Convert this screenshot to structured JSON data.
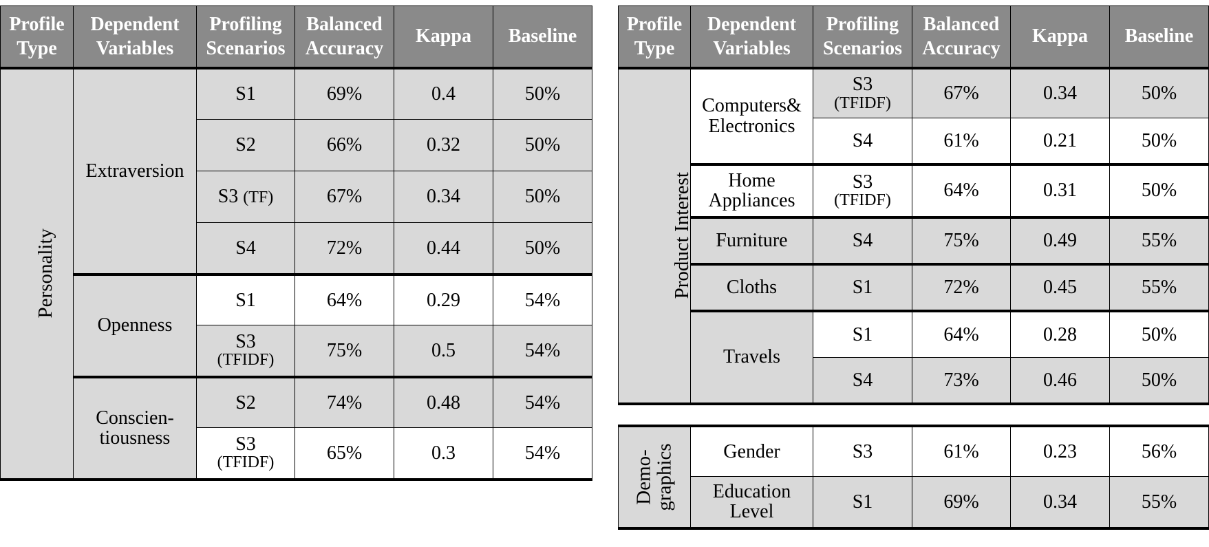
{
  "headers": {
    "profile_type": [
      "Profile",
      "Type"
    ],
    "dependent_variables": [
      "Dependent",
      "Variables"
    ],
    "profiling_scenarios": [
      "Profiling",
      "Scenarios"
    ],
    "balanced_accuracy": [
      "Balanced",
      "Accuracy"
    ],
    "kappa": "Kappa",
    "baseline": "Baseline"
  },
  "left": {
    "profile_type": "Personality",
    "groups": [
      {
        "variable": "Extraversion",
        "rows": [
          {
            "scenario": "S1",
            "acc": "69%",
            "kappa": "0.4",
            "baseline": "50%"
          },
          {
            "scenario": "S2",
            "acc": "66%",
            "kappa": "0.32",
            "baseline": "50%"
          },
          {
            "scenario": "S3",
            "scenario_sub": "(TF)",
            "acc": "67%",
            "kappa": "0.34",
            "baseline": "50%"
          },
          {
            "scenario": "S4",
            "acc": "72%",
            "kappa": "0.44",
            "baseline": "50%"
          }
        ]
      },
      {
        "variable": "Openness",
        "rows": [
          {
            "scenario": "S1",
            "acc": "64%",
            "kappa": "0.29",
            "baseline": "54%"
          },
          {
            "scenario": "S3",
            "scenario_sub": "(TFIDF)",
            "acc": "75%",
            "kappa": "0.5",
            "baseline": "54%"
          }
        ]
      },
      {
        "variable": [
          "Conscien-",
          "tiousness"
        ],
        "rows": [
          {
            "scenario": "S2",
            "acc": "74%",
            "kappa": "0.48",
            "baseline": "54%"
          },
          {
            "scenario": "S3",
            "scenario_sub": "(TFIDF)",
            "acc": "65%",
            "kappa": "0.3",
            "baseline": "54%"
          }
        ]
      }
    ]
  },
  "right": {
    "profile_type": "Product Interest",
    "groups": [
      {
        "variable": [
          "Computers&",
          "Electronics"
        ],
        "rows": [
          {
            "scenario": "S3",
            "scenario_sub": "(TFIDF)",
            "acc": "67%",
            "kappa": "0.34",
            "baseline": "50%"
          },
          {
            "scenario": "S4",
            "acc": "61%",
            "kappa": "0.21",
            "baseline": "50%"
          }
        ]
      },
      {
        "variable": [
          "Home",
          "Appliances"
        ],
        "rows": [
          {
            "scenario": "S3",
            "scenario_sub": "(TFIDF)",
            "acc": "64%",
            "kappa": "0.31",
            "baseline": "50%"
          }
        ]
      },
      {
        "variable": "Furniture",
        "rows": [
          {
            "scenario": "S4",
            "acc": "75%",
            "kappa": "0.49",
            "baseline": "55%"
          }
        ]
      },
      {
        "variable": "Cloths",
        "rows": [
          {
            "scenario": "S1",
            "acc": "72%",
            "kappa": "0.45",
            "baseline": "55%"
          }
        ]
      },
      {
        "variable": "Travels",
        "rows": [
          {
            "scenario": "S1",
            "acc": "64%",
            "kappa": "0.28",
            "baseline": "50%"
          },
          {
            "scenario": "S4",
            "acc": "73%",
            "kappa": "0.46",
            "baseline": "50%"
          }
        ]
      }
    ]
  },
  "demographics": {
    "profile_type": [
      "Demo-",
      "graphics"
    ],
    "rows": [
      {
        "variable": "Gender",
        "scenario": "S3",
        "acc": "61%",
        "kappa": "0.23",
        "baseline": "56%"
      },
      {
        "variable": [
          "Education",
          "Level"
        ],
        "scenario": "S1",
        "acc": "69%",
        "kappa": "0.34",
        "baseline": "55%"
      }
    ]
  }
}
